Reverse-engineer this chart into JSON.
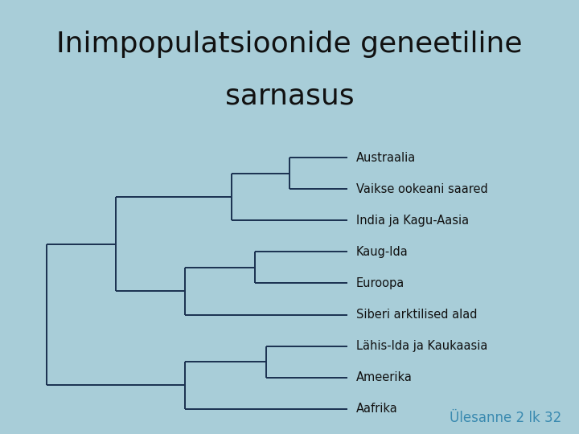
{
  "title_line1": "Inimpopulatsioonide geneetiline",
  "title_line2": "sarnasus",
  "background_color": "#a8cdd8",
  "title_fontsize": 26,
  "title_color": "#111111",
  "label_fontsize": 10.5,
  "label_color": "#111111",
  "line_color": "#1a3050",
  "line_width": 1.4,
  "annotation_color": "#3a8ab0",
  "annotation_text": "Ülesanne 2 lk 32",
  "annotation_fontsize": 12,
  "leaves": [
    "Austraalia",
    "Vaikse ookeani saared",
    "India ja Kagu-Aasia",
    "Kaug-Ida",
    "Euroopa",
    "Siberi arktilised alad",
    "Lähis-Ida ja Kaukaasia",
    "Ameerika",
    "Aafrika"
  ],
  "leaf_y": [
    9,
    8,
    7,
    6,
    5,
    4,
    3,
    2,
    1
  ],
  "ylim": [
    0.2,
    9.6
  ],
  "xlim": [
    0.0,
    1.0
  ]
}
